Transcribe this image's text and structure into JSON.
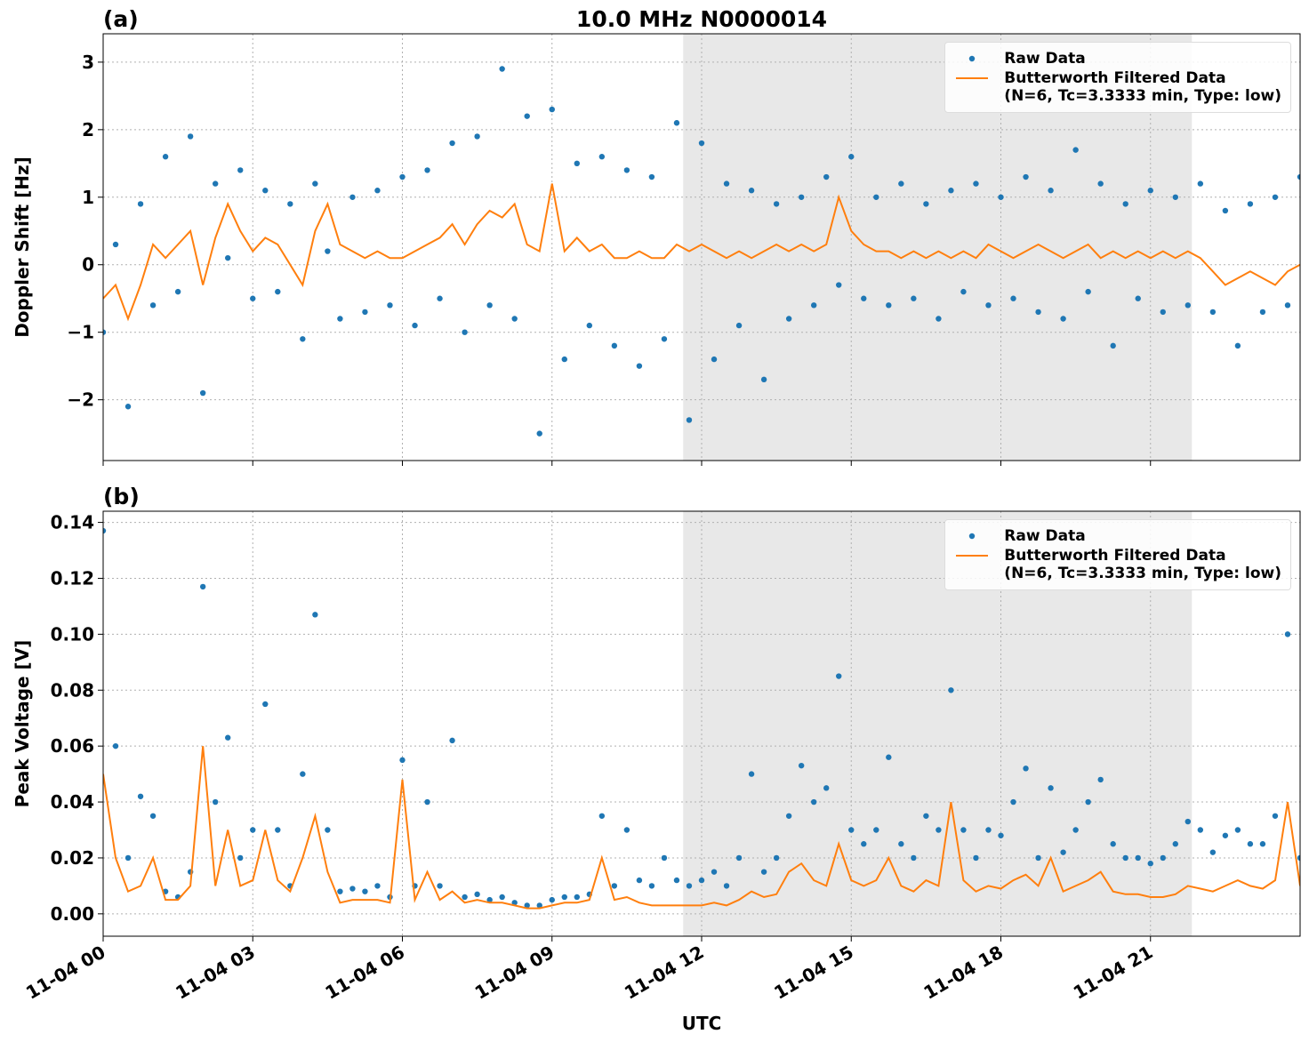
{
  "chart_data": [
    {
      "type": "scatter-line",
      "title": "10.0 MHz N0000014",
      "panel_label": "(a)",
      "ylabel": "Doppler Shift [Hz]",
      "x": [
        0,
        0.25,
        0.5,
        0.75,
        1,
        1.25,
        1.5,
        1.75,
        2,
        2.25,
        2.5,
        2.75,
        3,
        3.25,
        3.5,
        3.75,
        4,
        4.25,
        4.5,
        4.75,
        5,
        5.25,
        5.5,
        5.75,
        6,
        6.25,
        6.5,
        6.75,
        7,
        7.25,
        7.5,
        7.75,
        8,
        8.25,
        8.5,
        8.75,
        9,
        9.25,
        9.5,
        9.75,
        10,
        10.25,
        10.5,
        10.75,
        11,
        11.25,
        11.5,
        11.75,
        12,
        12.25,
        12.5,
        12.75,
        13,
        13.25,
        13.5,
        13.75,
        14,
        14.25,
        14.5,
        14.75,
        15,
        15.25,
        15.5,
        15.75,
        16,
        16.25,
        16.5,
        16.75,
        17,
        17.25,
        17.5,
        17.75,
        18,
        18.25,
        18.5,
        18.75,
        19,
        19.25,
        19.5,
        19.75,
        20,
        20.25,
        20.5,
        20.75,
        21,
        21.25,
        21.5,
        21.75,
        22,
        22.25,
        22.5,
        22.75,
        23,
        23.25,
        23.5,
        23.75,
        24
      ],
      "series": [
        {
          "name": "Raw Data",
          "color": "#1f77b4",
          "style": "points",
          "values": [
            -1.0,
            0.3,
            -2.1,
            0.9,
            -0.6,
            1.6,
            -0.4,
            1.9,
            -1.9,
            1.2,
            0.1,
            1.4,
            -0.5,
            1.1,
            -0.4,
            0.9,
            -1.1,
            1.2,
            0.2,
            -0.8,
            1.0,
            -0.7,
            1.1,
            -0.6,
            1.3,
            -0.9,
            1.4,
            -0.5,
            1.8,
            -1.0,
            1.9,
            -0.6,
            2.9,
            -0.8,
            2.2,
            -2.5,
            2.3,
            -1.4,
            1.5,
            -0.9,
            1.6,
            -1.2,
            1.4,
            -1.5,
            1.3,
            -1.1,
            2.1,
            -2.3,
            1.8,
            -1.4,
            1.2,
            -0.9,
            1.1,
            -1.7,
            0.9,
            -0.8,
            1.0,
            -0.6,
            1.3,
            -0.3,
            1.6,
            -0.5,
            1.0,
            -0.6,
            1.2,
            -0.5,
            0.9,
            -0.8,
            1.1,
            -0.4,
            1.2,
            -0.6,
            1.0,
            -0.5,
            1.3,
            -0.7,
            1.1,
            -0.8,
            1.7,
            -0.4,
            1.2,
            -1.2,
            0.9,
            -0.5,
            1.1,
            -0.7,
            1.0,
            -0.6,
            1.2,
            -0.7,
            0.8,
            -1.2,
            0.9,
            -0.7,
            1.0,
            -0.6,
            1.3
          ]
        },
        {
          "name": "Butterworth Filtered Data\n(N=6, Tc=3.3333 min, Type: low)",
          "color": "#ff7f0e",
          "style": "line",
          "values": [
            -0.5,
            -0.3,
            -0.8,
            -0.3,
            0.3,
            0.1,
            0.3,
            0.5,
            -0.3,
            0.4,
            0.9,
            0.5,
            0.2,
            0.4,
            0.3,
            0,
            -0.3,
            0.5,
            0.9,
            0.3,
            0.2,
            0.1,
            0.2,
            0.1,
            0.1,
            0.2,
            0.3,
            0.4,
            0.6,
            0.3,
            0.6,
            0.8,
            0.7,
            0.9,
            0.3,
            0.2,
            1.2,
            0.2,
            0.4,
            0.2,
            0.3,
            0.1,
            0.1,
            0.2,
            0.1,
            0.1,
            0.3,
            0.2,
            0.3,
            0.2,
            0.1,
            0.2,
            0.1,
            0.2,
            0.3,
            0.2,
            0.3,
            0.2,
            0.3,
            1.0,
            0.5,
            0.3,
            0.2,
            0.2,
            0.1,
            0.2,
            0.1,
            0.2,
            0.1,
            0.2,
            0.1,
            0.3,
            0.2,
            0.1,
            0.2,
            0.3,
            0.2,
            0.1,
            0.2,
            0.3,
            0.1,
            0.2,
            0.1,
            0.2,
            0.1,
            0.2,
            0.1,
            0.2,
            0.1,
            -0.1,
            -0.3,
            -0.2,
            -0.1,
            -0.2,
            -0.3,
            -0.1,
            0
          ]
        }
      ],
      "xlim": [
        0,
        24
      ],
      "ylim": [
        -2.9,
        3.42
      ],
      "xticks": [
        0,
        3,
        6,
        9,
        12,
        15,
        18,
        21
      ],
      "yticks": [
        {
          "value": -2,
          "label": "−2"
        },
        {
          "value": -1,
          "label": "−1"
        },
        0,
        1,
        2,
        3
      ],
      "shaded_span": [
        11.63,
        21.83
      ],
      "grid": true,
      "legend": "upper right"
    },
    {
      "type": "scatter-line",
      "panel_label": "(b)",
      "ylabel": "Peak Voltage [V]",
      "xlabel": "UTC",
      "x": [
        0,
        0.25,
        0.5,
        0.75,
        1,
        1.25,
        1.5,
        1.75,
        2,
        2.25,
        2.5,
        2.75,
        3,
        3.25,
        3.5,
        3.75,
        4,
        4.25,
        4.5,
        4.75,
        5,
        5.25,
        5.5,
        5.75,
        6,
        6.25,
        6.5,
        6.75,
        7,
        7.25,
        7.5,
        7.75,
        8,
        8.25,
        8.5,
        8.75,
        9,
        9.25,
        9.5,
        9.75,
        10,
        10.25,
        10.5,
        10.75,
        11,
        11.25,
        11.5,
        11.75,
        12,
        12.25,
        12.5,
        12.75,
        13,
        13.25,
        13.5,
        13.75,
        14,
        14.25,
        14.5,
        14.75,
        15,
        15.25,
        15.5,
        15.75,
        16,
        16.25,
        16.5,
        16.75,
        17,
        17.25,
        17.5,
        17.75,
        18,
        18.25,
        18.5,
        18.75,
        19,
        19.25,
        19.5,
        19.75,
        20,
        20.25,
        20.5,
        20.75,
        21,
        21.25,
        21.5,
        21.75,
        22,
        22.25,
        22.5,
        22.75,
        23,
        23.25,
        23.5,
        23.75,
        24
      ],
      "series": [
        {
          "name": "Raw Data",
          "color": "#1f77b4",
          "style": "points",
          "values": [
            0.137,
            0.06,
            0.02,
            0.042,
            0.035,
            0.008,
            0.006,
            0.015,
            0.117,
            0.04,
            0.063,
            0.02,
            0.03,
            0.075,
            0.03,
            0.01,
            0.05,
            0.107,
            0.03,
            0.008,
            0.009,
            0.008,
            0.01,
            0.006,
            0.055,
            0.01,
            0.04,
            0.01,
            0.062,
            0.006,
            0.007,
            0.005,
            0.006,
            0.004,
            0.003,
            0.003,
            0.005,
            0.006,
            0.006,
            0.007,
            0.035,
            0.01,
            0.03,
            0.012,
            0.01,
            0.02,
            0.012,
            0.01,
            0.012,
            0.015,
            0.01,
            0.02,
            0.05,
            0.015,
            0.02,
            0.035,
            0.053,
            0.04,
            0.045,
            0.085,
            0.03,
            0.025,
            0.03,
            0.056,
            0.025,
            0.02,
            0.035,
            0.03,
            0.08,
            0.03,
            0.02,
            0.03,
            0.028,
            0.04,
            0.052,
            0.02,
            0.045,
            0.022,
            0.03,
            0.04,
            0.048,
            0.025,
            0.02,
            0.02,
            0.018,
            0.02,
            0.025,
            0.033,
            0.03,
            0.022,
            0.028,
            0.03,
            0.025,
            0.025,
            0.035,
            0.1,
            0.02
          ]
        },
        {
          "name": "Butterworth Filtered Data\n(N=6, Tc=3.3333 min, Type: low)",
          "color": "#ff7f0e",
          "style": "line",
          "values": [
            0.05,
            0.02,
            0.008,
            0.01,
            0.02,
            0.005,
            0.005,
            0.01,
            0.06,
            0.01,
            0.03,
            0.01,
            0.012,
            0.03,
            0.012,
            0.008,
            0.02,
            0.035,
            0.015,
            0.004,
            0.005,
            0.005,
            0.005,
            0.004,
            0.048,
            0.005,
            0.015,
            0.005,
            0.008,
            0.004,
            0.005,
            0.004,
            0.004,
            0.003,
            0.002,
            0.002,
            0.003,
            0.004,
            0.004,
            0.005,
            0.02,
            0.005,
            0.006,
            0.004,
            0.003,
            0.003,
            0.003,
            0.003,
            0.003,
            0.004,
            0.003,
            0.005,
            0.008,
            0.006,
            0.007,
            0.015,
            0.018,
            0.012,
            0.01,
            0.025,
            0.012,
            0.01,
            0.012,
            0.02,
            0.01,
            0.008,
            0.012,
            0.01,
            0.04,
            0.012,
            0.008,
            0.01,
            0.009,
            0.012,
            0.014,
            0.01,
            0.02,
            0.008,
            0.01,
            0.012,
            0.015,
            0.008,
            0.007,
            0.007,
            0.006,
            0.006,
            0.007,
            0.01,
            0.009,
            0.008,
            0.01,
            0.012,
            0.01,
            0.009,
            0.012,
            0.04,
            0.01
          ]
        }
      ],
      "xlim": [
        0,
        24
      ],
      "ylim": [
        -0.008,
        0.144
      ],
      "xticks": [
        {
          "value": 0,
          "label": "11-04 00"
        },
        {
          "value": 3,
          "label": "11-04 03"
        },
        {
          "value": 6,
          "label": "11-04 06"
        },
        {
          "value": 9,
          "label": "11-04 09"
        },
        {
          "value": 12,
          "label": "11-04 12"
        },
        {
          "value": 15,
          "label": "11-04 15"
        },
        {
          "value": 18,
          "label": "11-04 18"
        },
        {
          "value": 21,
          "label": "11-04 21"
        }
      ],
      "yticks": [
        {
          "value": 0,
          "label": "0.00"
        },
        {
          "value": 0.02,
          "label": "0.02"
        },
        {
          "value": 0.04,
          "label": "0.04"
        },
        {
          "value": 0.06,
          "label": "0.06"
        },
        {
          "value": 0.08,
          "label": "0.08"
        },
        {
          "value": 0.1,
          "label": "0.10"
        },
        {
          "value": 0.12,
          "label": "0.12"
        },
        {
          "value": 0.14,
          "label": "0.14"
        }
      ],
      "shaded_span": [
        11.63,
        21.83
      ],
      "grid": true,
      "legend": "upper right"
    }
  ]
}
